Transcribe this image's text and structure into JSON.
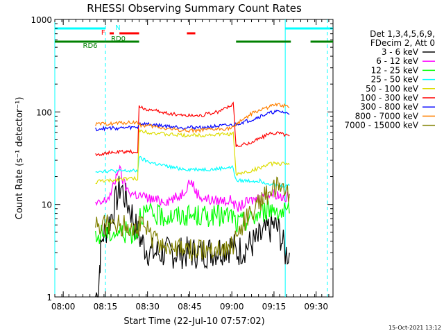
{
  "chart_data": {
    "type": "line",
    "title": "RHESSI Observing Summary Count Rates",
    "xlabel": "Start Time (22-Jul-10 07:57:02)",
    "ylabel": "Count Rate (s⁻¹ detector⁻¹)",
    "footer": "15-Oct-2021 13:12",
    "x_range_minutes": [
      0,
      99
    ],
    "ylim": [
      1,
      1000
    ],
    "yscale": "log",
    "x_ticks": [
      {
        "label": "08:00",
        "minute": 3
      },
      {
        "label": "08:15",
        "minute": 18
      },
      {
        "label": "08:30",
        "minute": 33
      },
      {
        "label": "08:45",
        "minute": 48
      },
      {
        "label": "09:00",
        "minute": 63
      },
      {
        "label": "09:15",
        "minute": 78
      },
      {
        "label": "09:30",
        "minute": 93
      }
    ],
    "y_ticks": [
      {
        "label": "1",
        "value": 1
      },
      {
        "label": "10",
        "value": 10
      },
      {
        "label": "100",
        "value": 100
      },
      {
        "label": "1000",
        "value": 1000
      }
    ],
    "legend": {
      "header": [
        "Det 1,3,4,5,6,9,",
        "FDecim 2, Att 0"
      ],
      "placement": "right"
    },
    "series": [
      {
        "name": "3 - 6 keV",
        "color": "#000000",
        "points": [
          [
            14.5,
            1
          ],
          [
            15.5,
            1.2
          ],
          [
            16,
            2.2
          ],
          [
            16.3,
            3
          ],
          [
            17,
            4.5
          ],
          [
            19,
            6
          ],
          [
            21,
            9
          ],
          [
            22.5,
            13
          ],
          [
            23.5,
            16
          ],
          [
            24.5,
            13
          ],
          [
            26,
            10
          ],
          [
            27.5,
            8
          ],
          [
            28.5,
            6
          ],
          [
            30,
            4.5
          ],
          [
            32,
            3.5
          ],
          [
            34,
            3
          ],
          [
            40,
            3
          ],
          [
            46,
            3
          ],
          [
            52,
            3
          ],
          [
            58,
            3.2
          ],
          [
            62,
            3.5
          ],
          [
            63.5,
            3.5
          ],
          [
            64.5,
            3
          ],
          [
            68,
            3.5
          ],
          [
            72,
            4
          ],
          [
            75,
            5
          ],
          [
            78,
            6
          ],
          [
            80,
            5
          ],
          [
            82,
            3
          ],
          [
            83.5,
            3
          ]
        ]
      },
      {
        "name": "6 - 12 keV",
        "color": "#ff00ff",
        "points": [
          [
            14.5,
            10
          ],
          [
            16,
            10
          ],
          [
            18,
            11
          ],
          [
            20,
            13
          ],
          [
            21.5,
            18
          ],
          [
            22.5,
            25
          ],
          [
            23.5,
            22
          ],
          [
            24.5,
            17
          ],
          [
            26,
            14
          ],
          [
            28,
            13
          ],
          [
            32,
            12
          ],
          [
            36,
            11
          ],
          [
            40,
            11
          ],
          [
            44,
            12
          ],
          [
            46,
            14
          ],
          [
            48,
            18
          ],
          [
            49,
            17
          ],
          [
            50,
            14
          ],
          [
            52,
            12
          ],
          [
            56,
            11
          ],
          [
            60,
            11
          ],
          [
            63.5,
            11
          ],
          [
            64.5,
            9
          ],
          [
            67,
            10
          ],
          [
            70,
            11
          ],
          [
            73,
            12
          ],
          [
            76,
            13
          ],
          [
            79,
            13
          ],
          [
            81,
            12
          ],
          [
            83.5,
            12
          ]
        ]
      },
      {
        "name": "12 - 25 keV",
        "color": "#00ff00",
        "points": [
          [
            14.5,
            4
          ],
          [
            15.5,
            4.5
          ],
          [
            17,
            5
          ],
          [
            20,
            5
          ],
          [
            24,
            5
          ],
          [
            28,
            5
          ],
          [
            29.5,
            5
          ],
          [
            30,
            8
          ],
          [
            33,
            8
          ],
          [
            36,
            7.5
          ],
          [
            40,
            7.5
          ],
          [
            44,
            7.5
          ],
          [
            48,
            7.5
          ],
          [
            52,
            7.5
          ],
          [
            56,
            7.5
          ],
          [
            60,
            7.5
          ],
          [
            63.5,
            7.5
          ],
          [
            64.5,
            6
          ],
          [
            67,
            6.5
          ],
          [
            70,
            7
          ],
          [
            73,
            8
          ],
          [
            76,
            9
          ],
          [
            79,
            9
          ],
          [
            81,
            8
          ],
          [
            83.5,
            8
          ]
        ]
      },
      {
        "name": "25 - 50 keV",
        "color": "#00ffff",
        "points": [
          [
            14.5,
            23
          ],
          [
            16,
            23
          ],
          [
            18,
            23
          ],
          [
            20,
            23
          ],
          [
            24,
            23
          ],
          [
            28,
            23
          ],
          [
            29.5,
            23
          ],
          [
            30,
            32
          ],
          [
            33,
            29
          ],
          [
            37,
            27
          ],
          [
            42,
            25
          ],
          [
            47,
            24
          ],
          [
            52,
            24
          ],
          [
            57,
            24
          ],
          [
            61,
            25
          ],
          [
            63.5,
            25
          ],
          [
            64.5,
            18
          ],
          [
            67,
            18
          ],
          [
            70,
            18
          ],
          [
            73,
            18
          ],
          [
            76,
            17
          ],
          [
            79,
            16
          ],
          [
            83.5,
            16
          ]
        ]
      },
      {
        "name": "50 - 100 keV",
        "color": "#dddd00",
        "points": [
          [
            14.5,
            17
          ],
          [
            16,
            18
          ],
          [
            18,
            18
          ],
          [
            20,
            18
          ],
          [
            24,
            19
          ],
          [
            28,
            19
          ],
          [
            29.5,
            19
          ],
          [
            30,
            63
          ],
          [
            34,
            60
          ],
          [
            40,
            57
          ],
          [
            46,
            56
          ],
          [
            52,
            56
          ],
          [
            58,
            57
          ],
          [
            63.5,
            58
          ],
          [
            64.5,
            21
          ],
          [
            67,
            22
          ],
          [
            70,
            23
          ],
          [
            73,
            25
          ],
          [
            76,
            27
          ],
          [
            79,
            28
          ],
          [
            83.5,
            27
          ]
        ]
      },
      {
        "name": "100 - 300 keV",
        "color": "#ff0000",
        "points": [
          [
            14.5,
            35
          ],
          [
            16,
            35
          ],
          [
            18,
            36
          ],
          [
            20,
            36
          ],
          [
            24,
            37
          ],
          [
            28,
            37
          ],
          [
            29.5,
            37
          ],
          [
            30,
            112
          ],
          [
            34,
            105
          ],
          [
            40,
            97
          ],
          [
            46,
            92
          ],
          [
            52,
            92
          ],
          [
            58,
            100
          ],
          [
            62,
            115
          ],
          [
            63.5,
            125
          ],
          [
            64.5,
            42
          ],
          [
            67,
            44
          ],
          [
            70,
            47
          ],
          [
            73,
            52
          ],
          [
            76,
            57
          ],
          [
            79,
            60
          ],
          [
            81,
            58
          ],
          [
            83.5,
            55
          ]
        ]
      },
      {
        "name": "300 - 800 keV",
        "color": "#0000ff",
        "points": [
          [
            14.5,
            65
          ],
          [
            16,
            66
          ],
          [
            18,
            66
          ],
          [
            20,
            67
          ],
          [
            24,
            67
          ],
          [
            28,
            68
          ],
          [
            29.5,
            68
          ],
          [
            30,
            75
          ],
          [
            34,
            73
          ],
          [
            40,
            70
          ],
          [
            46,
            68
          ],
          [
            52,
            68
          ],
          [
            58,
            70
          ],
          [
            63.5,
            72
          ],
          [
            66,
            76
          ],
          [
            70,
            82
          ],
          [
            74,
            92
          ],
          [
            78,
            100
          ],
          [
            81,
            100
          ],
          [
            83.5,
            94
          ]
        ]
      },
      {
        "name": "800 - 7000 keV",
        "color": "#ff8000",
        "points": [
          [
            14.5,
            73
          ],
          [
            16,
            74
          ],
          [
            18,
            74
          ],
          [
            20,
            75
          ],
          [
            24,
            76
          ],
          [
            28,
            77
          ],
          [
            29.5,
            77
          ],
          [
            30,
            72
          ],
          [
            34,
            70
          ],
          [
            40,
            66
          ],
          [
            46,
            63
          ],
          [
            52,
            63
          ],
          [
            58,
            65
          ],
          [
            63.5,
            67
          ],
          [
            66,
            80
          ],
          [
            70,
            95
          ],
          [
            74,
            108
          ],
          [
            78,
            118
          ],
          [
            81,
            118
          ],
          [
            83.5,
            112
          ]
        ]
      },
      {
        "name": "7000 - 15000 keV",
        "color": "#808000",
        "points": [
          [
            14.5,
            6
          ],
          [
            16,
            6
          ],
          [
            18,
            6
          ],
          [
            20,
            6
          ],
          [
            24,
            6
          ],
          [
            28,
            6
          ],
          [
            30,
            6
          ],
          [
            32,
            6
          ],
          [
            34,
            4.5
          ],
          [
            36,
            4
          ],
          [
            40,
            3.5
          ],
          [
            44,
            3.2
          ],
          [
            48,
            3.2
          ],
          [
            52,
            3.2
          ],
          [
            56,
            3.3
          ],
          [
            60,
            3.3
          ],
          [
            63.5,
            3.5
          ],
          [
            65,
            5
          ],
          [
            68,
            7
          ],
          [
            71,
            9
          ],
          [
            74,
            12
          ],
          [
            77,
            14
          ],
          [
            79,
            15
          ],
          [
            81,
            14
          ],
          [
            83.5,
            13
          ]
        ]
      }
    ],
    "status_bars": [
      {
        "label": "N",
        "label_minute": 21.5,
        "color": "#00ffff",
        "segments": [
          [
            0,
            18
          ],
          [
            82,
            99
          ]
        ],
        "level": "top"
      },
      {
        "label": "F",
        "label_minute": 16.5,
        "color": "#ff0000",
        "segments": [
          [
            19.5,
            21
          ],
          [
            23,
            30
          ],
          [
            47,
            50
          ]
        ],
        "level": "second"
      },
      {
        "label": "RD0",
        "label_minute": 20,
        "color": "#008000",
        "segments": [],
        "level": "third"
      },
      {
        "label": "RD6",
        "label_minute": 10,
        "color": "#008000",
        "segments": [
          [
            0,
            18
          ],
          [
            18,
            30
          ],
          [
            64.5,
            84
          ],
          [
            91,
            99
          ]
        ],
        "level": "third"
      }
    ],
    "vertical_markers": [
      {
        "minute": 0,
        "style": "solid",
        "color": "#00ffff"
      },
      {
        "minute": 18,
        "style": "dashed",
        "color": "#00ffff"
      },
      {
        "minute": 82,
        "style": "solid",
        "color": "#00ffff"
      },
      {
        "minute": 97,
        "style": "dashed",
        "color": "#00ffff"
      }
    ]
  }
}
